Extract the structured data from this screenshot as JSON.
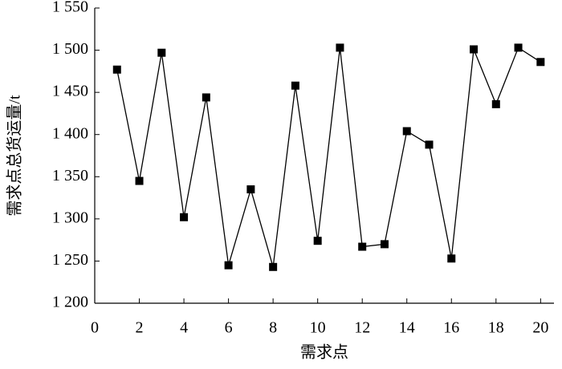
{
  "chart_data": {
    "type": "line",
    "x_label": "需求点",
    "y_label": "需求点总货运量/t",
    "x": [
      1,
      2,
      3,
      4,
      5,
      6,
      7,
      8,
      9,
      10,
      11,
      12,
      13,
      14,
      15,
      16,
      17,
      18,
      19,
      20
    ],
    "series": [
      {
        "color": "#000000",
        "values": [
          1477,
          1345,
          1497,
          1302,
          1444,
          1245,
          1335,
          1243,
          1458,
          1274,
          1503,
          1267,
          1270,
          1404,
          1388,
          1253,
          1501,
          1436,
          1503,
          1486
        ]
      }
    ],
    "xlim": [
      0,
      20.6
    ],
    "xticks": [
      0,
      2,
      4,
      6,
      8,
      10,
      12,
      14,
      16,
      18,
      20
    ],
    "ylim": [
      1200,
      1550
    ],
    "yticks": [
      {
        "value": 1200,
        "label": "1 200"
      },
      {
        "value": 1250,
        "label": "1 250"
      },
      {
        "value": 1300,
        "label": "1 300"
      },
      {
        "value": 1350,
        "label": "1 350"
      },
      {
        "value": 1400,
        "label": "1 400"
      },
      {
        "value": 1450,
        "label": "1 450"
      },
      {
        "value": 1500,
        "label": "1 500"
      },
      {
        "value": 1550,
        "label": "1 550"
      }
    ],
    "grid": false
  }
}
